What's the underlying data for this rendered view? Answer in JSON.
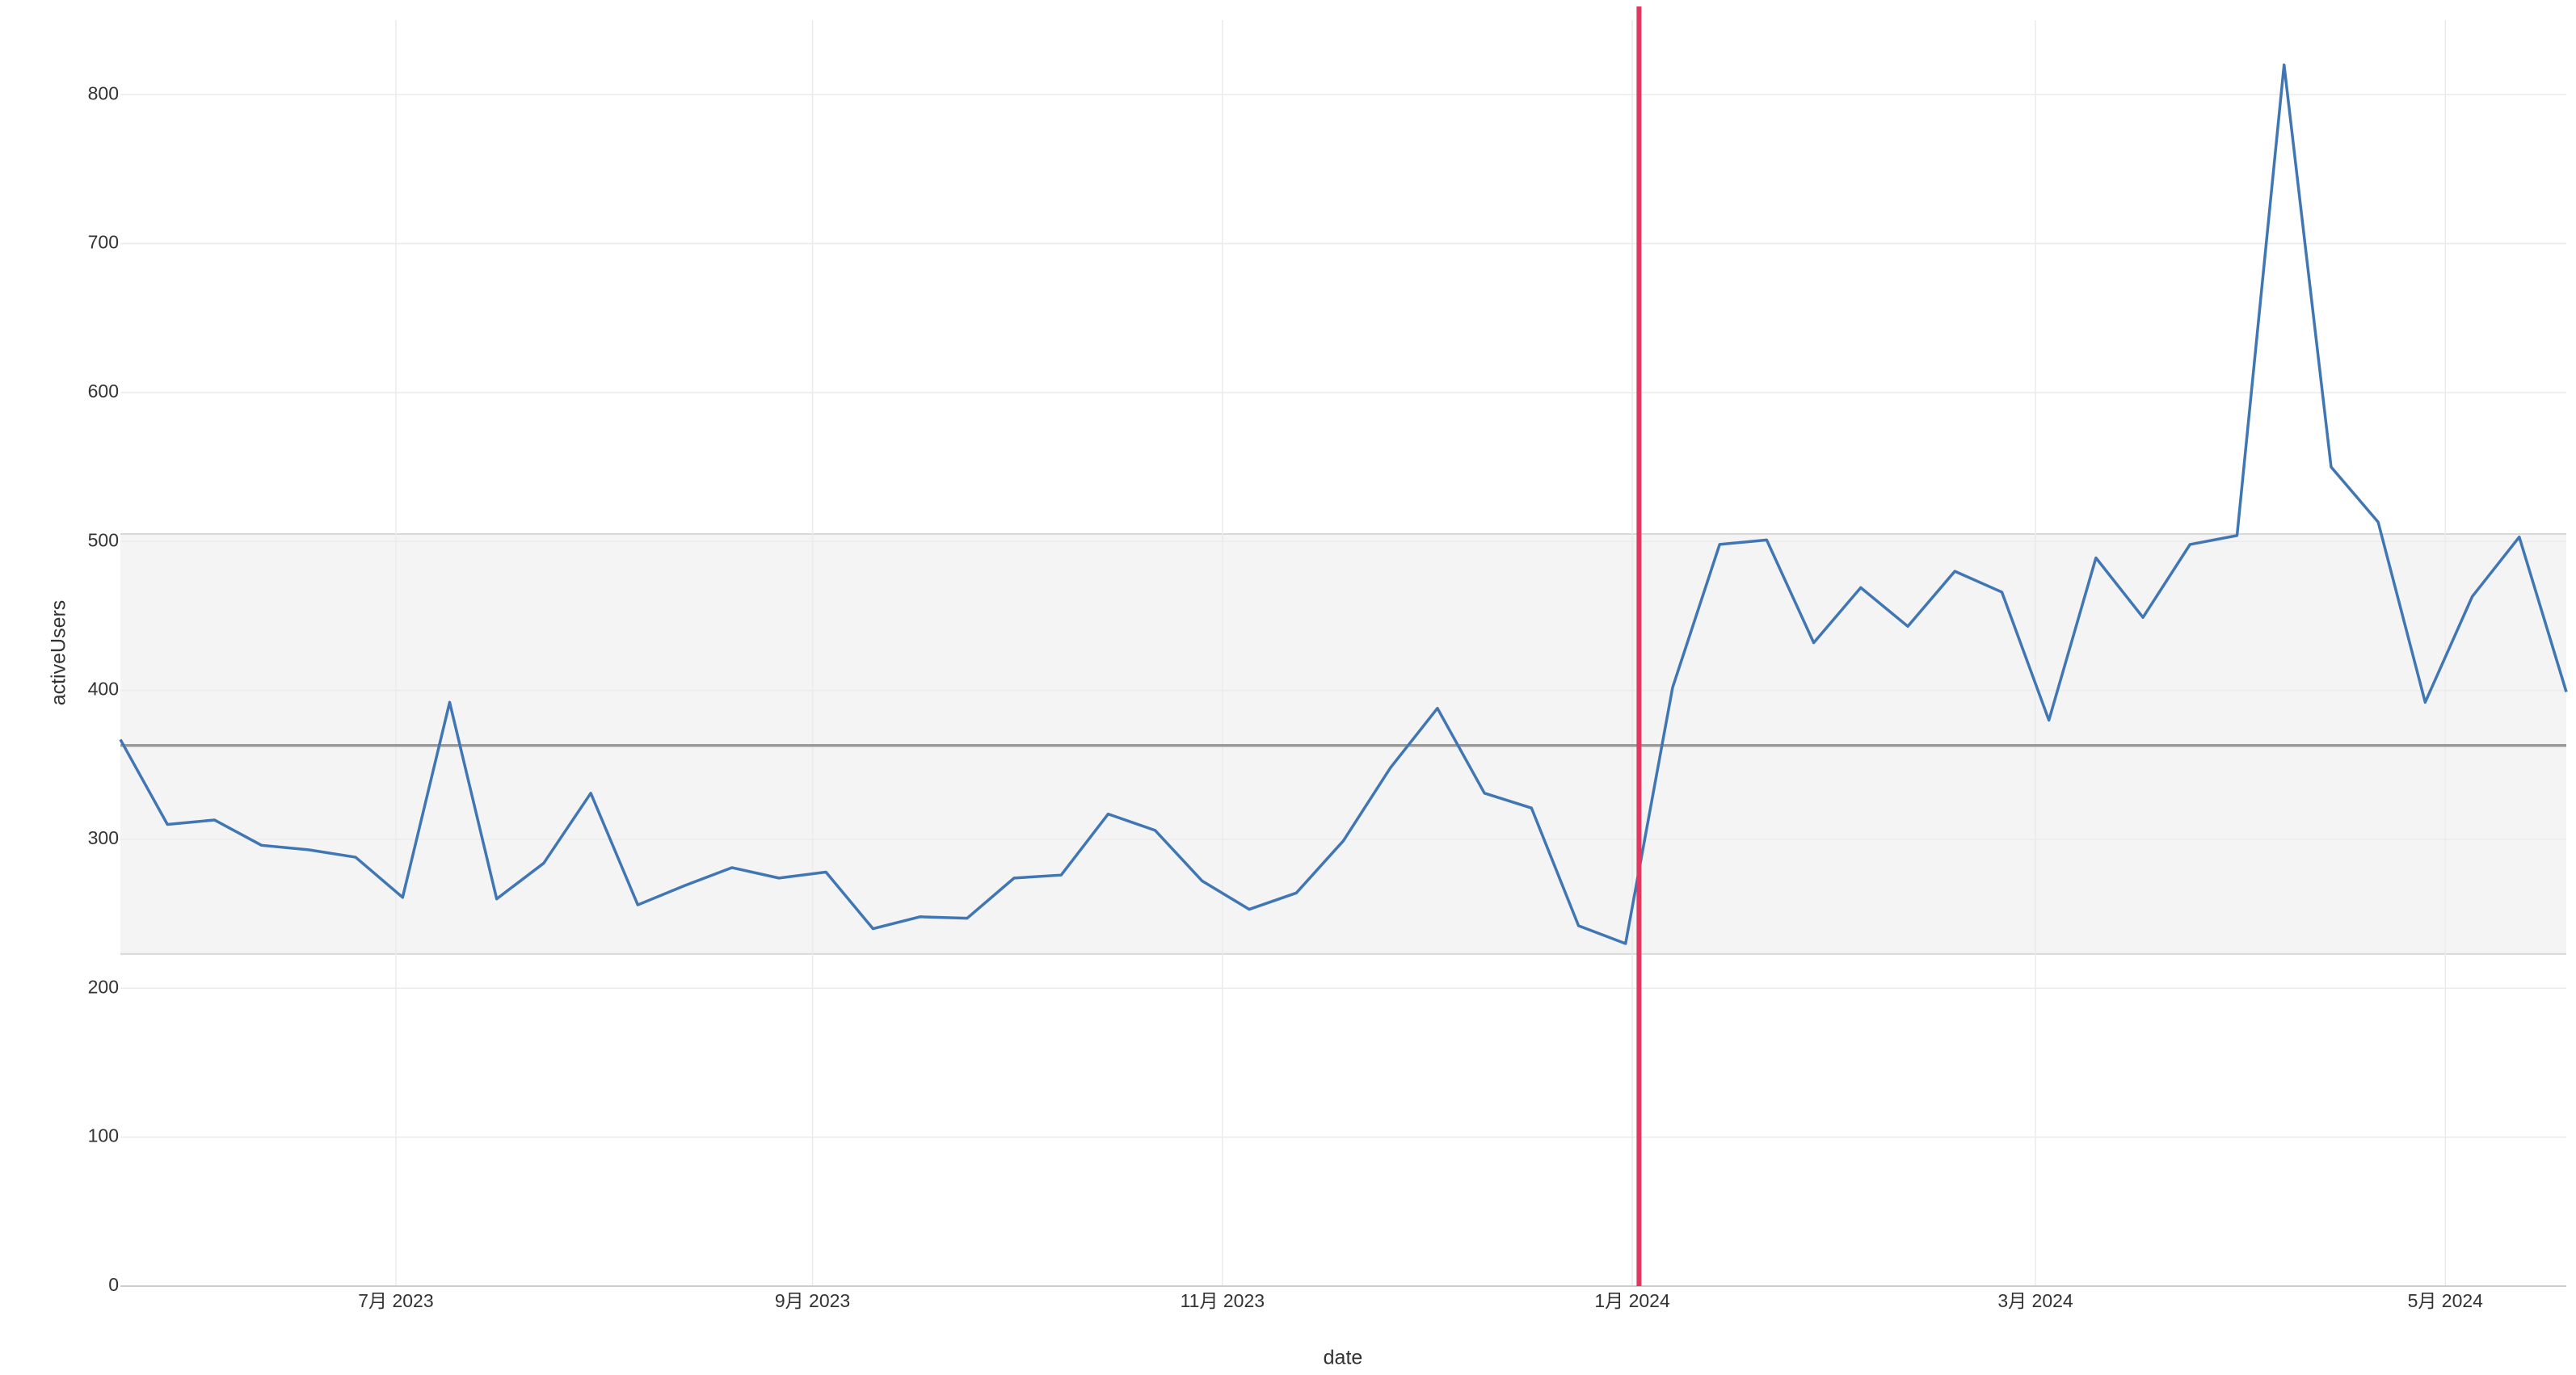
{
  "chart_data": {
    "type": "line",
    "x_label": "date",
    "y_label": "activeUsers",
    "x": [
      "2023-05-21",
      "2023-05-28",
      "2023-06-04",
      "2023-06-11",
      "2023-06-18",
      "2023-06-25",
      "2023-07-02",
      "2023-07-09",
      "2023-07-16",
      "2023-07-23",
      "2023-07-30",
      "2023-08-06",
      "2023-08-13",
      "2023-08-20",
      "2023-08-27",
      "2023-09-03",
      "2023-09-10",
      "2023-09-17",
      "2023-09-24",
      "2023-10-01",
      "2023-10-08",
      "2023-10-15",
      "2023-10-22",
      "2023-10-29",
      "2023-11-05",
      "2023-11-12",
      "2023-11-19",
      "2023-11-26",
      "2023-12-03",
      "2023-12-10",
      "2023-12-17",
      "2023-12-24",
      "2023-12-31",
      "2024-01-07",
      "2024-01-14",
      "2024-01-21",
      "2024-01-28",
      "2024-02-04",
      "2024-02-11",
      "2024-02-18",
      "2024-02-25",
      "2024-03-03",
      "2024-03-10",
      "2024-03-17",
      "2024-03-24",
      "2024-03-31",
      "2024-04-07",
      "2024-04-14",
      "2024-04-21",
      "2024-04-28",
      "2024-05-05",
      "2024-05-12",
      "2024-05-19"
    ],
    "series": [
      {
        "name": "activeUsers",
        "color": "#3f76b3",
        "values": [
          367,
          310,
          313,
          296,
          293,
          288,
          261,
          392,
          260,
          284,
          331,
          256,
          269,
          281,
          274,
          278,
          240,
          248,
          247,
          274,
          276,
          317,
          306,
          272,
          253,
          264,
          299,
          348,
          388,
          331,
          321,
          242,
          230,
          402,
          498,
          501,
          432,
          469,
          443,
          480,
          466,
          380,
          489,
          449,
          498,
          504,
          820,
          550,
          513,
          392,
          463,
          503,
          399
        ]
      }
    ],
    "xlim": [
      "2023-05-21",
      "2024-05-19"
    ],
    "xticks": [
      {
        "value": "2023-07-01",
        "label": "7月 2023"
      },
      {
        "value": "2023-09-01",
        "label": "9月 2023"
      },
      {
        "value": "2023-11-01",
        "label": "11月 2023"
      },
      {
        "value": "2024-01-01",
        "label": "1月 2024"
      },
      {
        "value": "2024-03-01",
        "label": "3月 2024"
      },
      {
        "value": "2024-05-01",
        "label": "5月 2024"
      }
    ],
    "ylim": [
      0,
      850
    ],
    "yticks": [
      0,
      100,
      200,
      300,
      400,
      500,
      600,
      700,
      800
    ],
    "grid": true,
    "mean_line": 363,
    "band": [
      223,
      505
    ],
    "vline": {
      "x": "2024-01-02",
      "color": "#e0385f"
    }
  }
}
